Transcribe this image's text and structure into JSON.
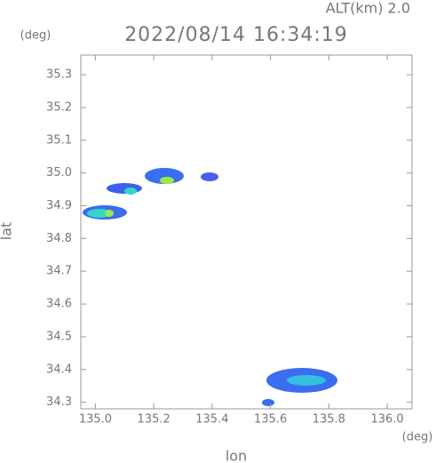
{
  "chart_data": {
    "type": "map",
    "title": "2022/08/14 16:34:19",
    "subtitle": "ALT(km) 2.0",
    "y_unit": "(deg)",
    "x_unit": "(deg)",
    "x_label": "lon",
    "y_label": "lat",
    "xlim": [
      134.95,
      136.085
    ],
    "ylim": [
      34.28,
      35.36
    ],
    "xticks": [
      {
        "value": 135,
        "label": "135.0"
      },
      135.2,
      135.4,
      135.6,
      135.8,
      {
        "value": 136,
        "label": "136.0"
      }
    ],
    "yticks": [
      34.3,
      34.4,
      34.5,
      34.6,
      34.7,
      34.8,
      34.9,
      {
        "value": 35,
        "label": "35.0"
      },
      35.1,
      35.2,
      35.3
    ]
  }
}
